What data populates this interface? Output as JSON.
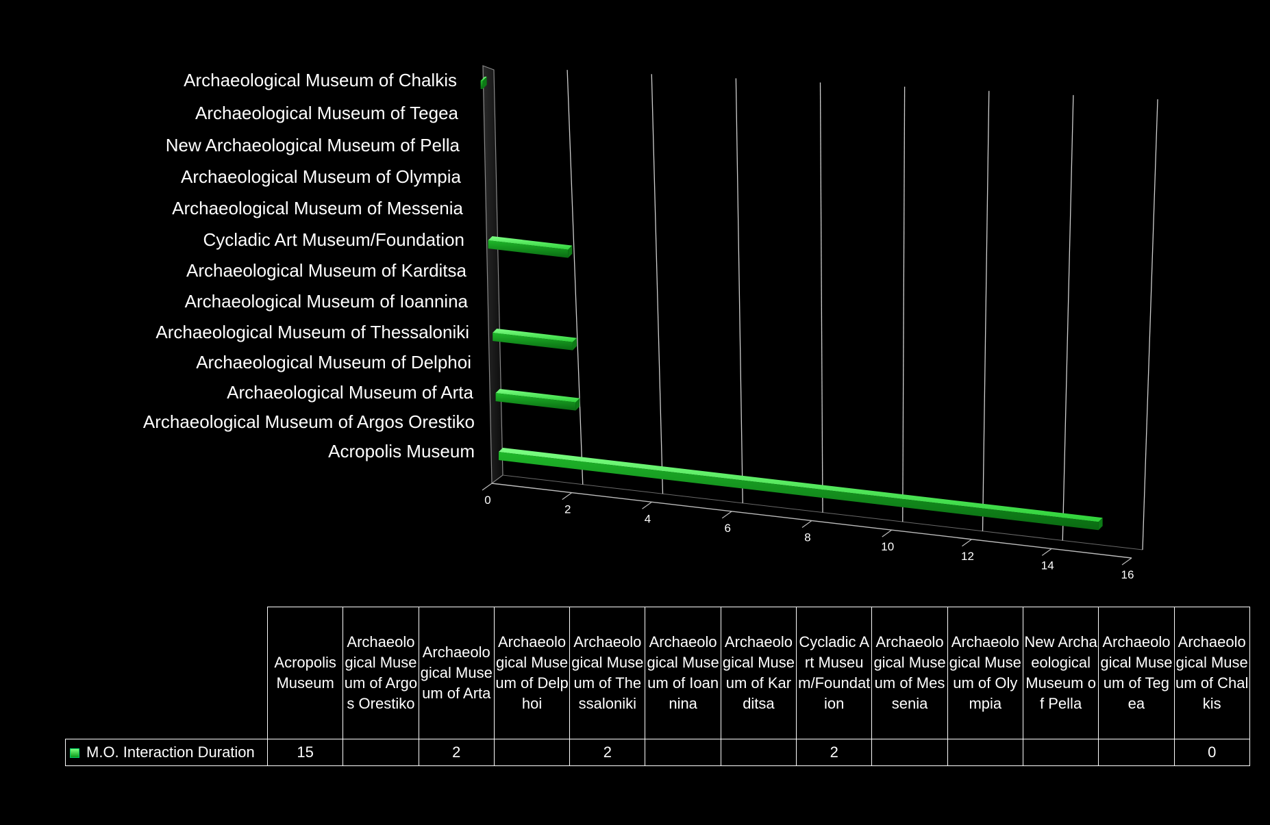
{
  "chart_data": {
    "type": "bar",
    "orientation": "horizontal",
    "style": "3d",
    "title": "",
    "xlabel": "",
    "ylabel": "",
    "xlim": [
      0,
      16
    ],
    "x_ticks": [
      "0",
      "2",
      "4",
      "6",
      "8",
      "10",
      "12",
      "14",
      "16"
    ],
    "grid": true,
    "legend_placement": "data table",
    "categories": [
      "Acropolis Museum",
      "Archaeological Museum of Argos Orestiko",
      "Archaeological Museum of Arta",
      "Archaeological Museum of Delphoi",
      "Archaeological Museum of Thessaloniki",
      "Archaeological Museum of Ioannina",
      "Archaeological Museum of Karditsa",
      "Cycladic Art Museum/Foundation",
      "Archaeological Museum of Messenia",
      "Archaeological Museum of Olympia",
      "New Archaeological Museum of Pella",
      "Archaeological Museum of Tegea",
      "Archaeological Museum of Chalkis"
    ],
    "series": [
      {
        "name": "M.O. Interaction Duration",
        "color": "#22cc33",
        "values": [
          15,
          null,
          2,
          null,
          2,
          null,
          null,
          2,
          null,
          null,
          null,
          null,
          0
        ]
      }
    ]
  },
  "table": {
    "headers": [
      "Acropolis Museum",
      "Archaeological Museum of Argos Orestiko",
      "Archaeological Museum of Arta",
      "Archaeological Museum of Delphoi",
      "Archaeological Museum of Thessaloniki",
      "Archaeological Museum of Ioannina",
      "Archaeological Museum of Karditsa",
      "Cycladic Art Museum/Foundation",
      "Archaeological Museum of Messenia",
      "Archaeological Museum of Olympia",
      "New Archaeological Museum of Pella",
      "Archaeological Museum of Tegea",
      "Archaeological Museum of Chalkis"
    ],
    "row_label": "M.O. Interaction Duration",
    "row_values": [
      "15",
      "",
      "2",
      "",
      "2",
      "",
      "",
      "2",
      "",
      "",
      "",
      "",
      "0"
    ]
  },
  "colors": {
    "background": "#000000",
    "bar": "#22cc33",
    "grid": "#c8c8c8",
    "text": "#ffffff"
  }
}
